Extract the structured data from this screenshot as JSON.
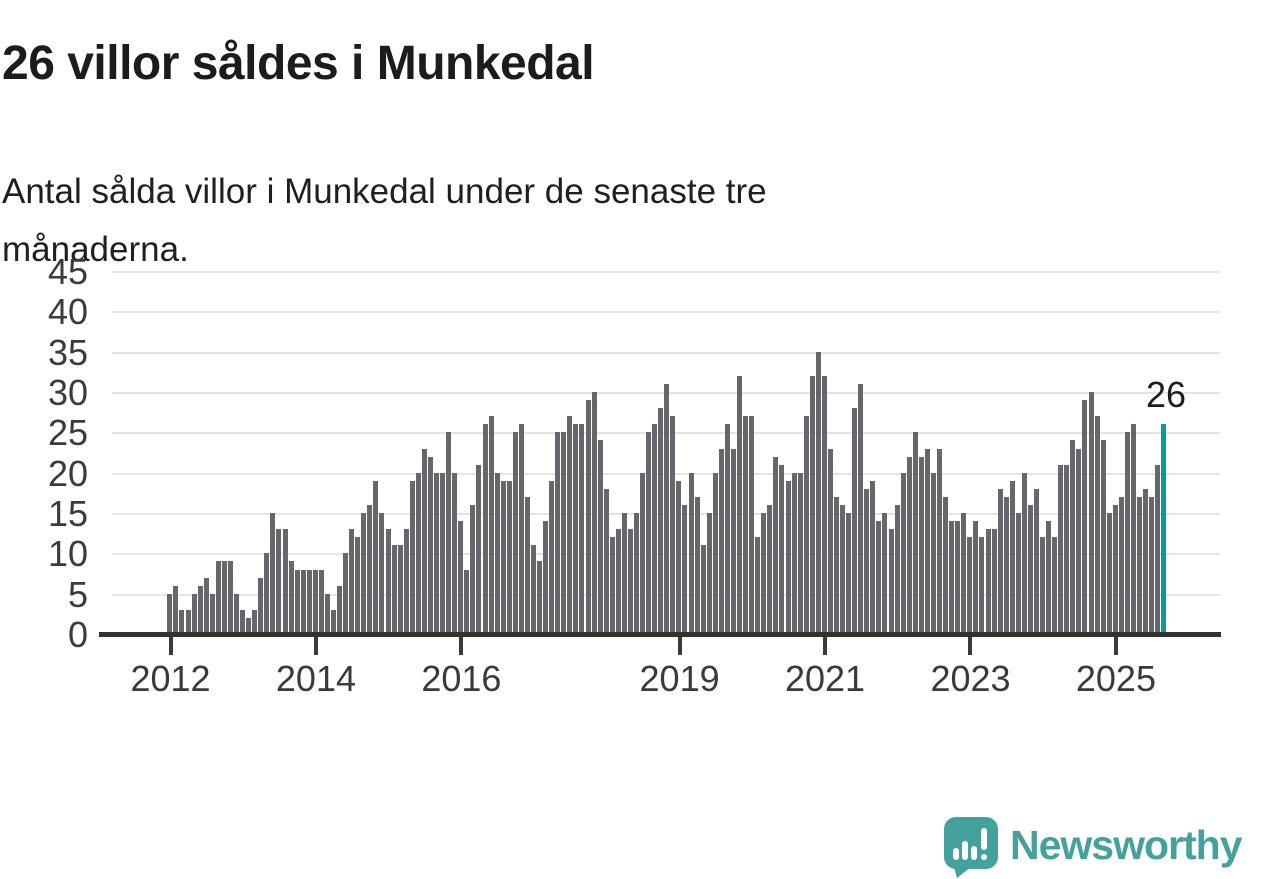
{
  "header": {
    "title": "26 villor såldes i Munkedal",
    "subtitle": "Antal sålda villor i Munkedal under de senaste tre\nmånaderna."
  },
  "chart_data": {
    "type": "bar",
    "title": "26 villor såldes i Munkedal",
    "description": "Antal sålda villor i Munkedal under de senaste tre månaderna (rullande tremånadersvärde per månad).",
    "start_month": "2012-01",
    "end_month": "2025-09",
    "values": [
      5,
      6,
      3,
      3,
      5,
      6,
      7,
      5,
      9,
      9,
      9,
      5,
      3,
      2,
      3,
      7,
      10,
      15,
      13,
      13,
      9,
      8,
      8,
      8,
      8,
      8,
      5,
      3,
      6,
      10,
      13,
      12,
      15,
      16,
      19,
      15,
      13,
      11,
      11,
      13,
      19,
      20,
      23,
      22,
      20,
      20,
      25,
      20,
      14,
      8,
      16,
      21,
      26,
      27,
      20,
      19,
      19,
      25,
      26,
      17,
      11,
      9,
      14,
      19,
      25,
      25,
      27,
      26,
      26,
      29,
      30,
      24,
      18,
      12,
      13,
      15,
      13,
      15,
      20,
      25,
      26,
      28,
      31,
      27,
      19,
      16,
      20,
      17,
      11,
      15,
      20,
      23,
      26,
      23,
      32,
      27,
      27,
      12,
      15,
      16,
      22,
      21,
      19,
      20,
      20,
      27,
      32,
      35,
      32,
      23,
      17,
      16,
      15,
      28,
      31,
      18,
      19,
      14,
      15,
      13,
      16,
      20,
      22,
      25,
      22,
      23,
      20,
      23,
      17,
      14,
      14,
      15,
      12,
      14,
      12,
      13,
      13,
      18,
      17,
      19,
      15,
      20,
      16,
      18,
      12,
      14,
      12,
      21,
      21,
      24,
      23,
      29,
      30,
      27,
      24,
      15,
      16,
      17,
      25,
      26,
      17,
      18,
      17,
      21,
      26
    ],
    "highlight_last": {
      "value": 26,
      "label": "26",
      "color": "#00a096"
    },
    "bar_color": "#67666c",
    "y_ticks": [
      0,
      5,
      10,
      15,
      20,
      25,
      30,
      35,
      40,
      45
    ],
    "ylim": [
      0,
      45
    ],
    "x_ticks": [
      {
        "label": "2012",
        "year": 2012
      },
      {
        "label": "2014",
        "year": 2014
      },
      {
        "label": "2016",
        "year": 2016
      },
      {
        "label": "2019",
        "year": 2019
      },
      {
        "label": "2021",
        "year": 2021
      },
      {
        "label": "2023",
        "year": 2023
      },
      {
        "label": "2025",
        "year": 2025
      }
    ],
    "grid": true,
    "legend": "none"
  },
  "annotation": {
    "text": "26"
  },
  "footer": {
    "brand": "Newsworthy",
    "logo_icon": "speech-bubble-bar-chart-exclamation-icon"
  },
  "colors": {
    "bar_gray": "#67666c",
    "accent_teal": "#00a096",
    "brand_teal": "#45a19c",
    "gridline": "#e4e4e4",
    "axis": "#323232",
    "text_dark": "#1c1c1a"
  }
}
